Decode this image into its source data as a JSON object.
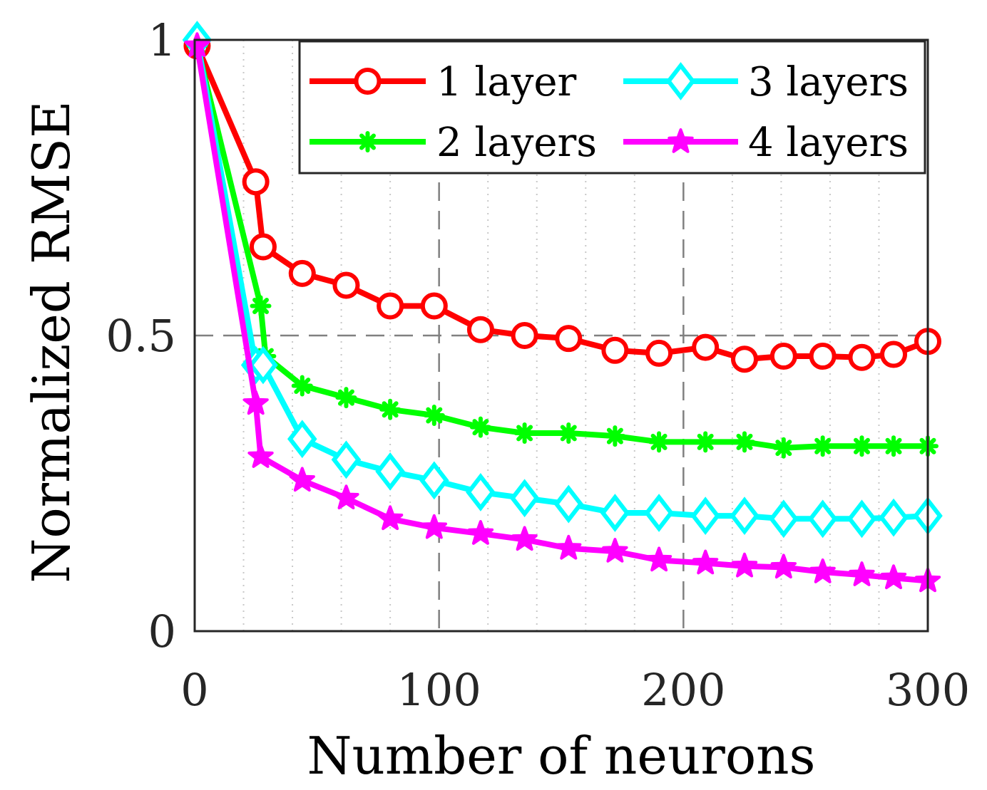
{
  "chart_data": {
    "type": "line",
    "xlabel": "Number of neurons",
    "ylabel": "Normalized RMSE",
    "xlim": [
      0,
      300
    ],
    "ylim": [
      0,
      1
    ],
    "xticks": [
      0,
      100,
      200,
      300
    ],
    "xtick_labels": [
      "0",
      "100",
      "200",
      "300"
    ],
    "yticks": [
      0,
      0.5,
      1
    ],
    "ytick_labels": [
      "0",
      "0.5",
      "1"
    ],
    "grid": "major dashed, minor dotted",
    "legend_position": "top-right",
    "series": [
      {
        "name": "1 layer",
        "color": "#ff0000",
        "marker": "circle",
        "x": [
          1,
          25,
          28,
          44,
          62,
          80,
          98,
          117,
          135,
          153,
          172,
          190,
          209,
          225,
          241,
          257,
          273,
          286,
          300
        ],
        "y": [
          0.99,
          0.76,
          0.65,
          0.605,
          0.585,
          0.55,
          0.55,
          0.51,
          0.5,
          0.495,
          0.475,
          0.47,
          0.48,
          0.46,
          0.465,
          0.465,
          0.463,
          0.468,
          0.49
        ]
      },
      {
        "name": "2 layers",
        "color": "#00ff00",
        "marker": "asterisk",
        "x": [
          1,
          27,
          29,
          44,
          62,
          80,
          98,
          117,
          135,
          153,
          172,
          190,
          209,
          225,
          241,
          257,
          273,
          286,
          300
        ],
        "y": [
          0.99,
          0.55,
          0.465,
          0.415,
          0.395,
          0.375,
          0.365,
          0.345,
          0.335,
          0.335,
          0.33,
          0.32,
          0.32,
          0.32,
          0.31,
          0.313,
          0.313,
          0.313,
          0.313
        ]
      },
      {
        "name": "3 layers",
        "color": "#00ffff",
        "marker": "diamond",
        "x": [
          1,
          25,
          28,
          44,
          62,
          80,
          98,
          117,
          135,
          153,
          172,
          190,
          209,
          225,
          241,
          257,
          273,
          286,
          300
        ],
        "y": [
          1.0,
          0.45,
          0.45,
          0.325,
          0.29,
          0.27,
          0.255,
          0.235,
          0.225,
          0.215,
          0.2,
          0.2,
          0.195,
          0.195,
          0.19,
          0.19,
          0.19,
          0.192,
          0.195
        ]
      },
      {
        "name": "4 layers",
        "color": "#ff00ff",
        "marker": "pentagram",
        "x": [
          1,
          25,
          27,
          44,
          62,
          80,
          98,
          117,
          135,
          153,
          172,
          190,
          209,
          225,
          241,
          257,
          273,
          286,
          300
        ],
        "y": [
          0.99,
          0.385,
          0.295,
          0.255,
          0.225,
          0.19,
          0.175,
          0.165,
          0.155,
          0.14,
          0.135,
          0.12,
          0.115,
          0.11,
          0.108,
          0.1,
          0.095,
          0.09,
          0.085
        ]
      }
    ]
  }
}
